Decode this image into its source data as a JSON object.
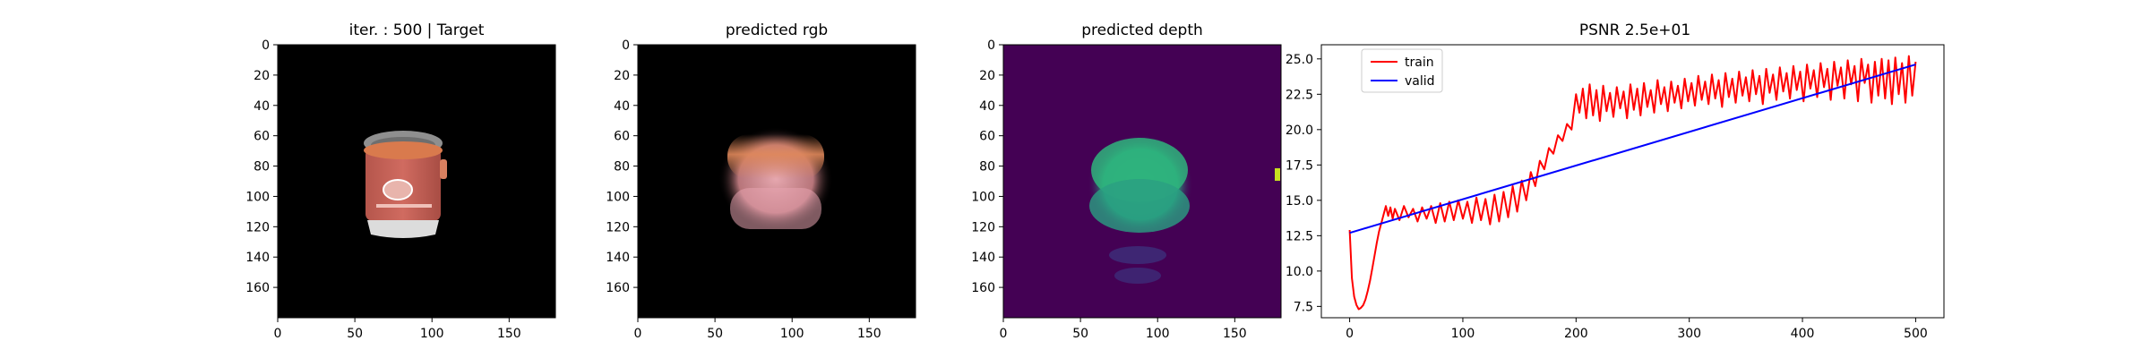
{
  "panels": [
    {
      "id": "target",
      "title": "iter. : 500 | Target"
    },
    {
      "id": "rgb",
      "title": "predicted rgb"
    },
    {
      "id": "depth",
      "title": "predicted depth"
    }
  ],
  "image_axes": {
    "x_ticks": [
      "0",
      "50",
      "100",
      "150"
    ],
    "y_ticks": [
      "0",
      "20",
      "40",
      "60",
      "80",
      "100",
      "120",
      "140",
      "160"
    ],
    "size": [
      180,
      180
    ]
  },
  "colors": {
    "train": "#ff0000",
    "valid": "#0000ff",
    "depth_background": "#440154",
    "depth_object": "#2db27d",
    "cooker_body": "#c96459",
    "cooker_lid": "#8f8f8f",
    "cooker_base": "#dcdcdc"
  },
  "chart_data": {
    "type": "line",
    "title": "PSNR 2.5e+01",
    "xlabel": "",
    "ylabel": "",
    "xlim": [
      -25,
      525
    ],
    "ylim": [
      6.7,
      26.0
    ],
    "x_ticks": [
      0,
      100,
      200,
      300,
      400,
      500
    ],
    "y_ticks": [
      7.5,
      10.0,
      12.5,
      15.0,
      17.5,
      20.0,
      22.5,
      25.0
    ],
    "legend": "upper-left",
    "grid": false,
    "series": [
      {
        "name": "train",
        "color": "#ff0000",
        "points": [
          [
            0,
            12.9
          ],
          [
            2,
            9.5
          ],
          [
            4,
            8.2
          ],
          [
            6,
            7.6
          ],
          [
            8,
            7.3
          ],
          [
            10,
            7.4
          ],
          [
            12,
            7.6
          ],
          [
            14,
            8.0
          ],
          [
            16,
            8.6
          ],
          [
            18,
            9.3
          ],
          [
            20,
            10.2
          ],
          [
            22,
            11.1
          ],
          [
            24,
            12.0
          ],
          [
            26,
            12.8
          ],
          [
            28,
            13.4
          ],
          [
            30,
            14.0
          ],
          [
            32,
            14.6
          ],
          [
            34,
            13.9
          ],
          [
            36,
            14.5
          ],
          [
            38,
            13.7
          ],
          [
            40,
            14.4
          ],
          [
            44,
            13.6
          ],
          [
            48,
            14.6
          ],
          [
            52,
            13.8
          ],
          [
            56,
            14.4
          ],
          [
            60,
            13.5
          ],
          [
            64,
            14.5
          ],
          [
            68,
            13.7
          ],
          [
            72,
            14.6
          ],
          [
            76,
            13.4
          ],
          [
            80,
            14.8
          ],
          [
            84,
            13.5
          ],
          [
            88,
            14.9
          ],
          [
            92,
            13.6
          ],
          [
            96,
            15.0
          ],
          [
            100,
            13.7
          ],
          [
            104,
            14.9
          ],
          [
            108,
            13.4
          ],
          [
            112,
            15.2
          ],
          [
            116,
            13.6
          ],
          [
            120,
            15.1
          ],
          [
            124,
            13.3
          ],
          [
            128,
            15.4
          ],
          [
            132,
            13.5
          ],
          [
            136,
            15.6
          ],
          [
            140,
            13.8
          ],
          [
            144,
            16.0
          ],
          [
            148,
            14.2
          ],
          [
            152,
            16.4
          ],
          [
            156,
            15.0
          ],
          [
            160,
            17.0
          ],
          [
            164,
            16.0
          ],
          [
            168,
            17.8
          ],
          [
            172,
            17.2
          ],
          [
            176,
            18.7
          ],
          [
            180,
            18.3
          ],
          [
            184,
            19.6
          ],
          [
            188,
            19.2
          ],
          [
            192,
            20.4
          ],
          [
            196,
            20.0
          ],
          [
            200,
            22.5
          ],
          [
            203,
            21.2
          ],
          [
            206,
            22.9
          ],
          [
            209,
            20.8
          ],
          [
            212,
            23.2
          ],
          [
            215,
            21.0
          ],
          [
            218,
            22.8
          ],
          [
            221,
            20.6
          ],
          [
            224,
            23.1
          ],
          [
            227,
            21.3
          ],
          [
            230,
            22.6
          ],
          [
            233,
            20.9
          ],
          [
            236,
            23.0
          ],
          [
            239,
            21.5
          ],
          [
            242,
            22.7
          ],
          [
            245,
            20.8
          ],
          [
            248,
            23.2
          ],
          [
            251,
            21.4
          ],
          [
            254,
            22.9
          ],
          [
            257,
            21.0
          ],
          [
            260,
            23.3
          ],
          [
            263,
            21.6
          ],
          [
            266,
            22.8
          ],
          [
            269,
            21.2
          ],
          [
            272,
            23.5
          ],
          [
            275,
            21.8
          ],
          [
            278,
            23.0
          ],
          [
            281,
            21.3
          ],
          [
            284,
            23.4
          ],
          [
            287,
            21.9
          ],
          [
            290,
            23.1
          ],
          [
            293,
            21.5
          ],
          [
            296,
            23.6
          ],
          [
            299,
            22.0
          ],
          [
            302,
            23.3
          ],
          [
            305,
            21.7
          ],
          [
            308,
            23.8
          ],
          [
            311,
            22.1
          ],
          [
            314,
            23.4
          ],
          [
            317,
            21.8
          ],
          [
            320,
            23.9
          ],
          [
            323,
            22.2
          ],
          [
            326,
            23.5
          ],
          [
            329,
            21.6
          ],
          [
            332,
            24.0
          ],
          [
            335,
            22.3
          ],
          [
            338,
            23.6
          ],
          [
            341,
            21.9
          ],
          [
            344,
            24.1
          ],
          [
            347,
            22.4
          ],
          [
            350,
            23.7
          ],
          [
            353,
            22.0
          ],
          [
            356,
            24.2
          ],
          [
            359,
            22.5
          ],
          [
            362,
            23.8
          ],
          [
            365,
            21.8
          ],
          [
            368,
            24.3
          ],
          [
            371,
            22.6
          ],
          [
            374,
            23.9
          ],
          [
            377,
            22.1
          ],
          [
            380,
            24.4
          ],
          [
            383,
            22.7
          ],
          [
            386,
            24.0
          ],
          [
            389,
            22.2
          ],
          [
            392,
            24.5
          ],
          [
            395,
            22.8
          ],
          [
            398,
            24.1
          ],
          [
            401,
            22.0
          ],
          [
            404,
            24.6
          ],
          [
            407,
            22.9
          ],
          [
            410,
            24.2
          ],
          [
            413,
            22.3
          ],
          [
            416,
            24.7
          ],
          [
            419,
            23.0
          ],
          [
            422,
            24.3
          ],
          [
            425,
            22.1
          ],
          [
            428,
            24.8
          ],
          [
            431,
            23.1
          ],
          [
            434,
            24.4
          ],
          [
            437,
            22.2
          ],
          [
            440,
            24.9
          ],
          [
            443,
            23.2
          ],
          [
            446,
            24.5
          ],
          [
            449,
            22.0
          ],
          [
            452,
            25.0
          ],
          [
            455,
            23.3
          ],
          [
            458,
            24.6
          ],
          [
            461,
            21.9
          ],
          [
            464,
            24.8
          ],
          [
            467,
            22.4
          ],
          [
            470,
            25.0
          ],
          [
            473,
            22.2
          ],
          [
            476,
            24.9
          ],
          [
            479,
            21.8
          ],
          [
            482,
            25.1
          ],
          [
            485,
            22.5
          ],
          [
            488,
            24.7
          ],
          [
            491,
            21.9
          ],
          [
            494,
            25.2
          ],
          [
            497,
            22.4
          ],
          [
            500,
            24.8
          ]
        ]
      },
      {
        "name": "valid",
        "color": "#0000ff",
        "points": [
          [
            0,
            12.7
          ],
          [
            500,
            24.6
          ]
        ]
      }
    ]
  }
}
